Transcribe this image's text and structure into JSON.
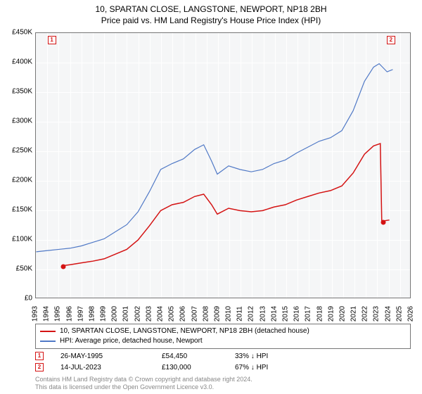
{
  "title_line1": "10, SPARTAN CLOSE, LANGSTONE, NEWPORT, NP18 2BH",
  "title_line2": "Price paid vs. HM Land Registry's House Price Index (HPI)",
  "chart": {
    "type": "line",
    "background_color": "#f5f6f7",
    "grid_color": "#ffffff",
    "border_color": "#767676",
    "x": {
      "min": 1993,
      "max": 2026,
      "ticks": [
        1993,
        1994,
        1995,
        1996,
        1997,
        1998,
        1999,
        2000,
        2001,
        2002,
        2003,
        2004,
        2005,
        2006,
        2007,
        2008,
        2009,
        2010,
        2011,
        2012,
        2013,
        2014,
        2015,
        2016,
        2017,
        2018,
        2019,
        2020,
        2021,
        2022,
        2023,
        2024,
        2025,
        2026
      ],
      "tick_label_fontsize": 10,
      "tick_label_rotation": -90
    },
    "y": {
      "min": 0,
      "max": 450000,
      "ticks": [
        0,
        50000,
        100000,
        150000,
        200000,
        250000,
        300000,
        350000,
        400000,
        450000
      ],
      "tick_labels": [
        "£0",
        "£50K",
        "£100K",
        "£150K",
        "£200K",
        "£250K",
        "£300K",
        "£350K",
        "£400K",
        "£450K"
      ],
      "tick_label_fontsize": 10
    },
    "series": [
      {
        "name": "property",
        "label": "10, SPARTAN CLOSE, LANGSTONE, NEWPORT, NP18 2BH (detached house)",
        "color": "#d41313",
        "line_width": 1.5,
        "points": [
          [
            1995.4,
            54450
          ],
          [
            1996,
            56000
          ],
          [
            1997,
            59000
          ],
          [
            1998,
            62000
          ],
          [
            1999,
            66000
          ],
          [
            2000,
            74000
          ],
          [
            2001,
            82000
          ],
          [
            2002,
            98000
          ],
          [
            2003,
            122000
          ],
          [
            2004,
            148000
          ],
          [
            2005,
            158000
          ],
          [
            2006,
            162000
          ],
          [
            2007,
            172000
          ],
          [
            2007.8,
            176000
          ],
          [
            2008.5,
            158000
          ],
          [
            2009,
            142000
          ],
          [
            2010,
            152000
          ],
          [
            2011,
            148000
          ],
          [
            2012,
            146000
          ],
          [
            2013,
            148000
          ],
          [
            2014,
            154000
          ],
          [
            2015,
            158000
          ],
          [
            2016,
            166000
          ],
          [
            2017,
            172000
          ],
          [
            2018,
            178000
          ],
          [
            2019,
            182000
          ],
          [
            2020,
            190000
          ],
          [
            2021,
            212000
          ],
          [
            2022,
            244000
          ],
          [
            2022.8,
            258000
          ],
          [
            2023.4,
            262000
          ],
          [
            2023.53,
            130000
          ],
          [
            2024.2,
            132000
          ]
        ]
      },
      {
        "name": "hpi",
        "label": "HPI: Average price, detached house, Newport",
        "color": "#5079c6",
        "line_width": 1.2,
        "points": [
          [
            1993,
            78000
          ],
          [
            1994,
            80000
          ],
          [
            1995,
            82000
          ],
          [
            1996,
            84000
          ],
          [
            1997,
            88000
          ],
          [
            1998,
            94000
          ],
          [
            1999,
            100000
          ],
          [
            2000,
            112000
          ],
          [
            2001,
            124000
          ],
          [
            2002,
            146000
          ],
          [
            2003,
            180000
          ],
          [
            2004,
            218000
          ],
          [
            2005,
            228000
          ],
          [
            2006,
            236000
          ],
          [
            2007,
            252000
          ],
          [
            2007.8,
            260000
          ],
          [
            2008.5,
            232000
          ],
          [
            2009,
            210000
          ],
          [
            2010,
            224000
          ],
          [
            2011,
            218000
          ],
          [
            2012,
            214000
          ],
          [
            2013,
            218000
          ],
          [
            2014,
            228000
          ],
          [
            2015,
            234000
          ],
          [
            2016,
            246000
          ],
          [
            2017,
            256000
          ],
          [
            2018,
            266000
          ],
          [
            2019,
            272000
          ],
          [
            2020,
            284000
          ],
          [
            2021,
            318000
          ],
          [
            2022,
            368000
          ],
          [
            2022.8,
            392000
          ],
          [
            2023.3,
            398000
          ],
          [
            2024,
            384000
          ],
          [
            2024.5,
            388000
          ]
        ]
      }
    ],
    "data_markers": [
      {
        "id": "1",
        "year": 1995.4,
        "value": 54450,
        "color": "#d41313"
      },
      {
        "id": "2",
        "year": 2023.53,
        "value": 130000,
        "color": "#d41313"
      }
    ],
    "marker_box_positions": [
      {
        "id": "1",
        "year": 1994.4,
        "value": 438000,
        "color": "#d41313"
      },
      {
        "id": "2",
        "year": 2024.2,
        "value": 438000,
        "color": "#d41313"
      }
    ]
  },
  "legend": {
    "rows": [
      {
        "color": "#d41313",
        "label": "10, SPARTAN CLOSE, LANGSTONE, NEWPORT, NP18 2BH (detached house)"
      },
      {
        "color": "#5079c6",
        "label": "HPI: Average price, detached house, Newport"
      }
    ]
  },
  "markers_table": {
    "rows": [
      {
        "id": "1",
        "color": "#d41313",
        "date": "26-MAY-1995",
        "price": "£54,450",
        "pct": "33% ↓ HPI"
      },
      {
        "id": "2",
        "color": "#d41313",
        "date": "14-JUL-2023",
        "price": "£130,000",
        "pct": "67% ↓ HPI"
      }
    ]
  },
  "footer": {
    "line1": "Contains HM Land Registry data © Crown copyright and database right 2024.",
    "line2": "This data is licensed under the Open Government Licence v3.0."
  }
}
